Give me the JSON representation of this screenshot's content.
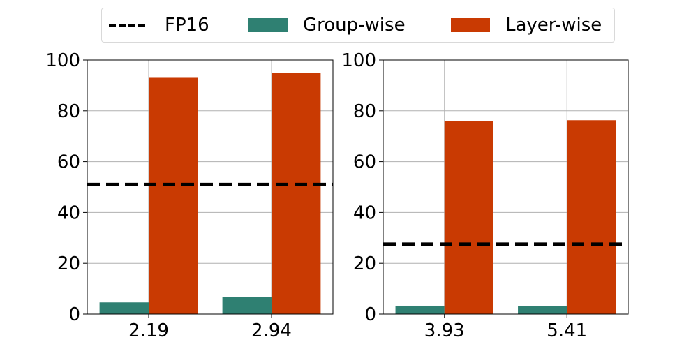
{
  "colors": {
    "group": "#2f8072",
    "layer": "#c93a02",
    "baseline": "#000000",
    "grid": "#b0b0b0"
  },
  "legend": {
    "baseline_label": "FP16",
    "group_label": "Group-wise",
    "layer_label": "Layer-wise"
  },
  "chart_data": [
    {
      "type": "bar",
      "categories": [
        "2.19",
        "2.94"
      ],
      "series": [
        {
          "name": "Group-wise",
          "values": [
            4.6,
            6.6
          ]
        },
        {
          "name": "Layer-wise",
          "values": [
            93.0,
            95.0
          ]
        }
      ],
      "baseline": {
        "name": "FP16",
        "value": 51.0
      },
      "ylim": [
        0,
        100
      ],
      "yticks": [
        "0",
        "20",
        "40",
        "60",
        "80",
        "100"
      ],
      "grid": true
    },
    {
      "type": "bar",
      "categories": [
        "3.93",
        "5.41"
      ],
      "series": [
        {
          "name": "Group-wise",
          "values": [
            3.3,
            3.1
          ]
        },
        {
          "name": "Layer-wise",
          "values": [
            76.0,
            76.3
          ]
        }
      ],
      "baseline": {
        "name": "FP16",
        "value": 27.5
      },
      "ylim": [
        0,
        100
      ],
      "yticks": [
        "0",
        "20",
        "40",
        "60",
        "80",
        "100"
      ],
      "grid": true
    }
  ]
}
